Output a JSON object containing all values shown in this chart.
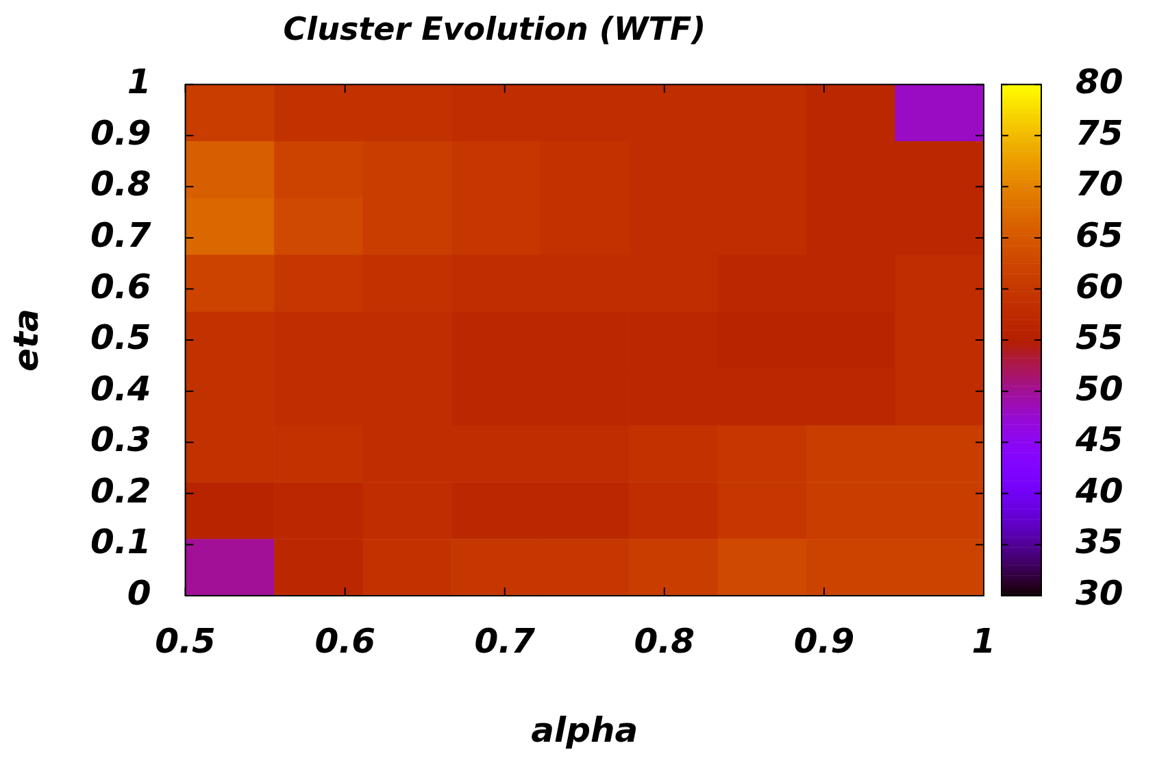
{
  "chart_data": {
    "type": "heatmap",
    "title": "Cluster Evolution (WTF)",
    "xlabel": "alpha",
    "ylabel": "eta",
    "cells": [
      [
        61,
        59,
        59,
        58,
        58,
        58,
        58,
        57,
        48
      ],
      [
        66,
        62,
        61,
        60,
        59,
        58,
        58,
        57,
        57
      ],
      [
        67,
        63,
        61,
        60,
        59,
        58,
        58,
        57,
        57
      ],
      [
        62,
        60,
        59,
        58,
        58,
        58,
        57,
        57,
        58
      ],
      [
        59,
        58,
        58,
        57,
        57,
        57,
        56,
        56,
        58
      ],
      [
        59,
        58,
        58,
        57,
        57,
        57,
        57,
        57,
        58
      ],
      [
        59,
        59,
        58,
        58,
        58,
        59,
        60,
        61,
        61
      ],
      [
        56,
        57,
        58,
        57,
        57,
        58,
        60,
        61,
        61
      ],
      [
        50,
        57,
        59,
        60,
        60,
        61,
        63,
        62,
        62
      ]
    ],
    "xlim": [
      0.5,
      1
    ],
    "xticks": [
      0.5,
      0.6,
      0.7,
      0.8,
      0.9,
      1
    ],
    "ylim": [
      0,
      1
    ],
    "yticks": [
      0,
      0.1,
      0.2,
      0.3,
      0.4,
      0.5,
      0.6,
      0.7,
      0.8,
      0.9,
      1
    ],
    "clim": [
      30,
      80
    ],
    "cticks": [
      30,
      35,
      40,
      45,
      50,
      55,
      60,
      65,
      70,
      75,
      80
    ]
  }
}
